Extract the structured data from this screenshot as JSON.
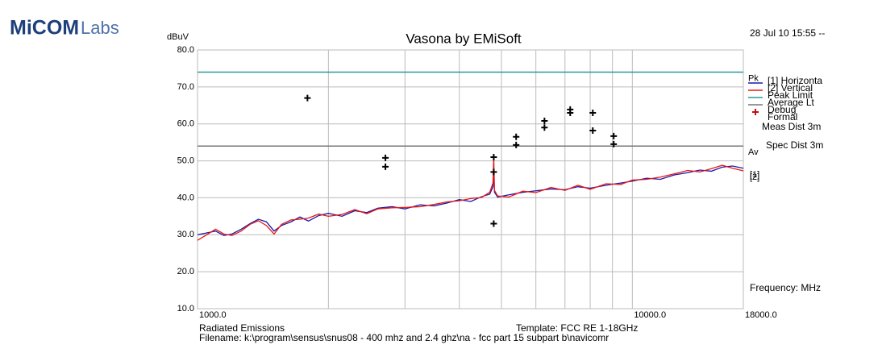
{
  "logo": {
    "bold": "MiCOM",
    "light": "Labs"
  },
  "date": "28 Jul 10 15:55 --",
  "footer": {
    "left": "Radiated Emissions",
    "template": "Template: FCC RE 1-18GHz",
    "filename": "Filename: k:\\program\\sensus\\snus08 - 400 mhz and 2.4 ghz\\na - fcc part 15 subpart b\\navicomr"
  },
  "chart_data": {
    "type": "line",
    "title": "Vasona by EMiSoft",
    "y_label": "dBuV",
    "x_label": "Frequency: MHz",
    "xscale": "log",
    "xlim": [
      1000,
      18000
    ],
    "xticks": [
      {
        "value": 1000,
        "label": "1000.0"
      },
      {
        "value": 10000,
        "label": "10000.0"
      },
      {
        "value": 18000,
        "label": "18000.0"
      }
    ],
    "xgrid": [
      2000,
      3000,
      4000,
      5000,
      6000,
      7000,
      8000,
      9000
    ],
    "ylim": [
      10,
      80
    ],
    "yticks": [
      {
        "value": 10,
        "label": "10.0"
      },
      {
        "value": 20,
        "label": "20.0"
      },
      {
        "value": 30,
        "label": "30.0"
      },
      {
        "value": 40,
        "label": "40.0"
      },
      {
        "value": 50,
        "label": "50.0"
      },
      {
        "value": 60,
        "label": "60.0"
      },
      {
        "value": 70,
        "label": "70.0"
      },
      {
        "value": 80,
        "label": "80.0"
      }
    ],
    "grid": true,
    "x": [
      1000,
      1050,
      1100,
      1150,
      1200,
      1260,
      1320,
      1380,
      1440,
      1500,
      1560,
      1640,
      1720,
      1800,
      1900,
      2000,
      2150,
      2300,
      2450,
      2600,
      2800,
      3000,
      3250,
      3500,
      3750,
      4000,
      4250,
      4500,
      4700,
      4780,
      4800,
      4820,
      4900,
      5200,
      5600,
      6000,
      6500,
      7000,
      7500,
      8000,
      8700,
      9400,
      10000,
      10800,
      11600,
      12500,
      13400,
      14300,
      15200,
      16100,
      17000,
      18000
    ],
    "series": [
      {
        "name": "[1] Horizonta",
        "color": "#1a1aa8",
        "values": [
          30,
          30.5,
          31,
          29.8,
          30.2,
          31.5,
          33,
          34.2,
          33.5,
          31,
          32.5,
          33.5,
          34.8,
          33.7,
          35.2,
          35.8,
          35,
          36.5,
          36,
          37.2,
          37.6,
          37,
          38.1,
          37.8,
          38.6,
          39.5,
          39,
          40.3,
          41,
          43,
          47,
          41.5,
          40.2,
          40.8,
          41.5,
          41.9,
          42.4,
          42.2,
          43,
          42.6,
          43.4,
          44,
          44.5,
          45.3,
          45,
          46.2,
          46.8,
          47.5,
          47.2,
          48.3,
          48.6,
          48
        ]
      },
      {
        "name": "[2] Vertical",
        "color": "#e81818",
        "values": [
          28.5,
          30,
          31.5,
          30.2,
          29.8,
          31,
          32.8,
          33.8,
          32.5,
          30.2,
          32.8,
          34,
          34.2,
          34.5,
          35.6,
          35,
          35.5,
          36.8,
          35.7,
          37,
          37.3,
          37.4,
          37.6,
          38.2,
          38.9,
          39.2,
          39.8,
          40.1,
          41.5,
          44,
          51,
          42,
          40.5,
          40.2,
          41.8,
          41.4,
          42.8,
          42,
          43.4,
          42.3,
          43.8,
          43.6,
          44.8,
          45,
          45.6,
          46.5,
          47.4,
          47,
          47.9,
          48.8,
          48,
          47.3
        ]
      }
    ],
    "limits": [
      {
        "name": "Peak Limit",
        "label": "Pk",
        "color": "#2a9a96",
        "value": 74
      },
      {
        "name": "Average Lt",
        "label": "Av",
        "color": "#777777",
        "value": 54
      }
    ],
    "markers": {
      "name": "Debug",
      "color": "#000000",
      "legend_color": "#c01010",
      "x": [
        1790,
        2705,
        2705,
        4800,
        4800,
        4800,
        5405,
        5405,
        6280,
        6280,
        7196,
        7196,
        8110,
        8110,
        9060,
        9060
      ],
      "values": [
        67,
        50.8,
        48.4,
        51,
        47,
        33,
        56.5,
        54.3,
        60.8,
        59,
        63.9,
        63,
        63,
        58.2,
        56.7,
        54.5
      ]
    },
    "legend_extra": "Formal",
    "meas_dist": "Meas Dist 3m",
    "spec_dist": "Spec Dist 3m",
    "trace_tags": [
      "[1]",
      "[2]"
    ]
  }
}
